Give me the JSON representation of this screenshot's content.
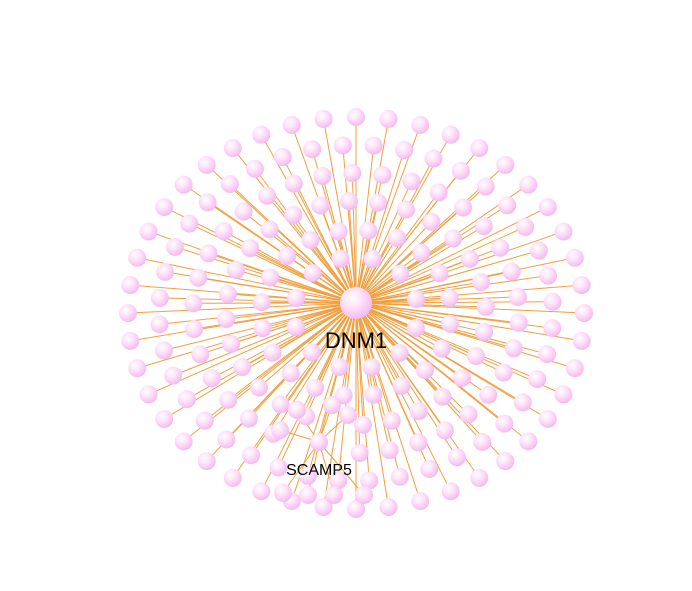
{
  "network": {
    "hub": {
      "label": "DNM1"
    },
    "highlighted_node": {
      "label": "SCAMP5"
    },
    "edge_color": "#f0a040",
    "node_color": "#ffd8f8",
    "node_highlight_color": "#ffffff",
    "node_shadow_color": "#e8a8e0"
  }
}
